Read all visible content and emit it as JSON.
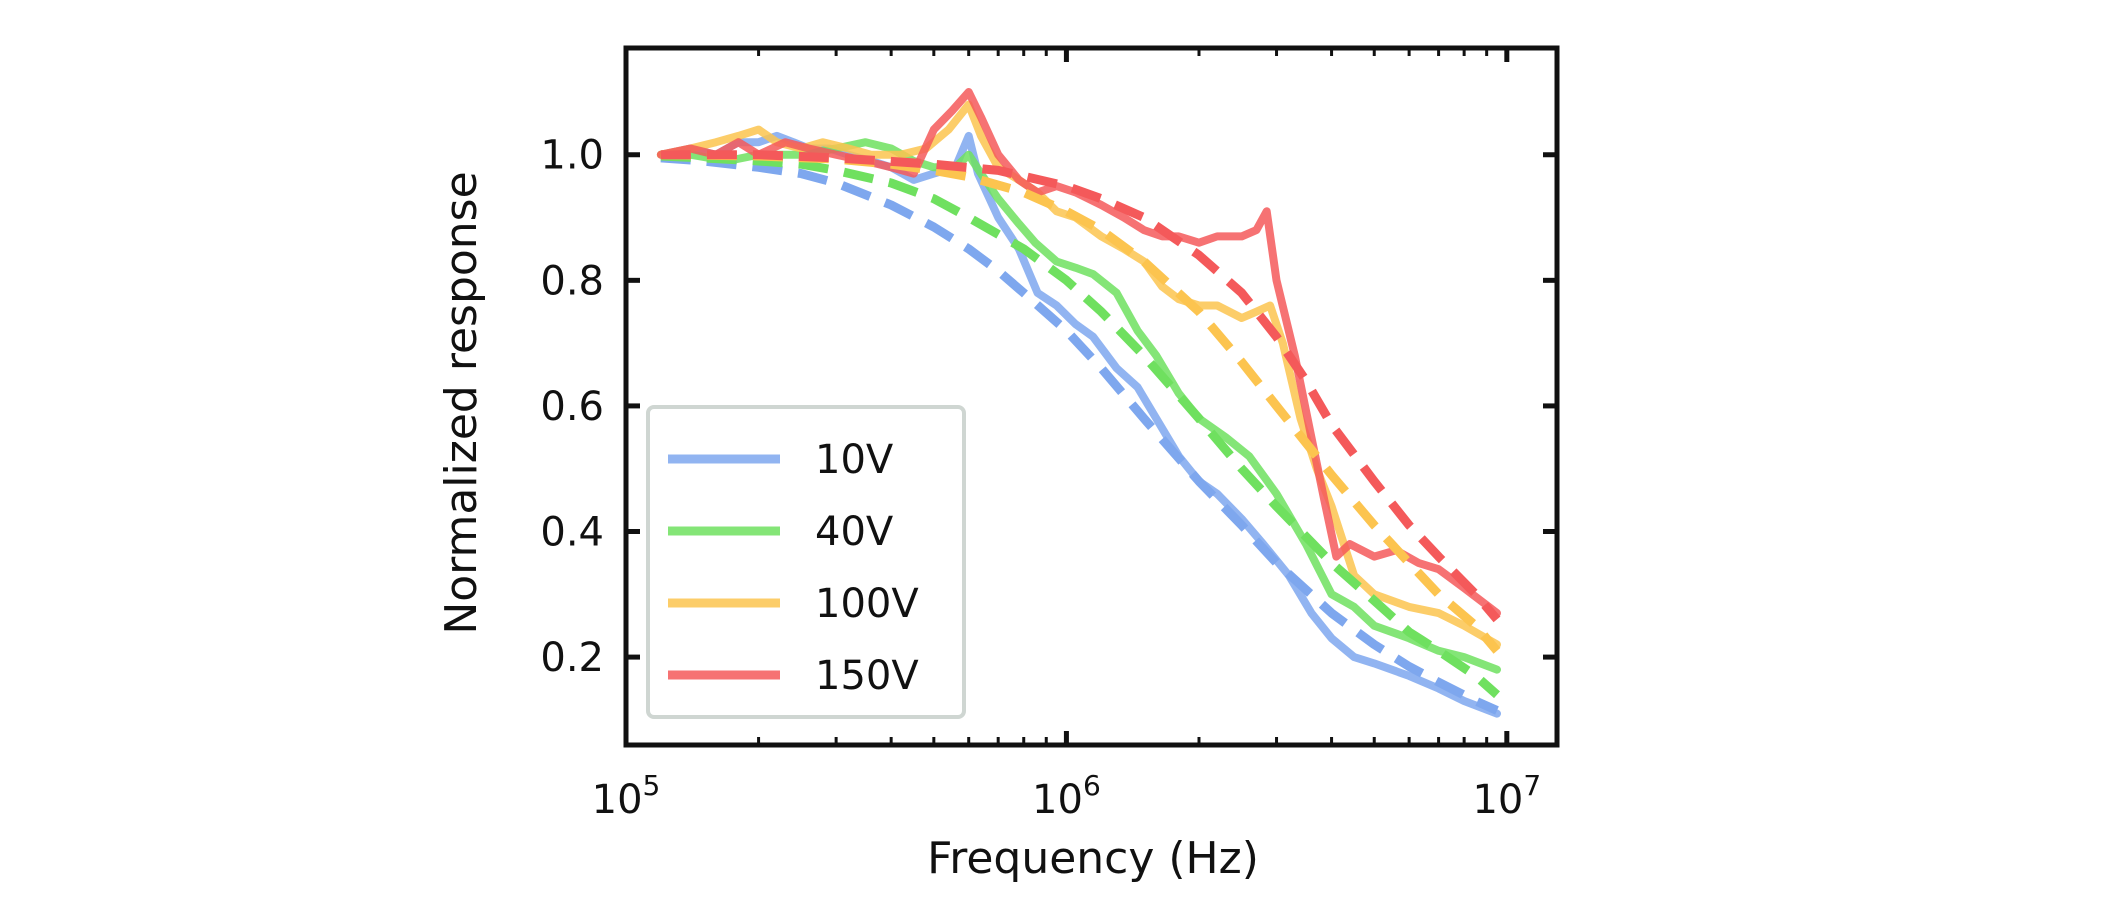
{
  "chart_data": {
    "type": "line",
    "title": "",
    "xlabel": "Frequency (Hz)",
    "ylabel": "Normalized response",
    "xscale": "log",
    "xlim": [
      100000,
      13000000
    ],
    "ylim": [
      0.06,
      1.17
    ],
    "grid": false,
    "legend_position": "bottom-left",
    "x_ticks": [
      {
        "value": 100000,
        "base": "10",
        "exp": "5"
      },
      {
        "value": 1000000,
        "base": "10",
        "exp": "6"
      },
      {
        "value": 10000000,
        "base": "10",
        "exp": "7"
      }
    ],
    "y_ticks": [
      {
        "value": 0.2,
        "label": "0.2"
      },
      {
        "value": 0.4,
        "label": "0.4"
      },
      {
        "value": 0.6,
        "label": "0.6"
      },
      {
        "value": 0.8,
        "label": "0.8"
      },
      {
        "value": 1.0,
        "label": "1.0"
      }
    ],
    "series": [
      {
        "name": "10V",
        "color": "#7ea7ee",
        "measured": [
          [
            120000,
            1.0
          ],
          [
            140000,
            1.01
          ],
          [
            160000,
            1.0
          ],
          [
            180000,
            1.02
          ],
          [
            200000,
            1.02
          ],
          [
            220000,
            1.03
          ],
          [
            240000,
            1.02
          ],
          [
            260000,
            1.01
          ],
          [
            290000,
            1.01
          ],
          [
            320000,
            1.0
          ],
          [
            360000,
            0.99
          ],
          [
            400000,
            0.98
          ],
          [
            450000,
            0.96
          ],
          [
            500000,
            0.97
          ],
          [
            560000,
            0.98
          ],
          [
            600000,
            1.03
          ],
          [
            630000,
            0.97
          ],
          [
            700000,
            0.9
          ],
          [
            780000,
            0.85
          ],
          [
            860000,
            0.78
          ],
          [
            950000,
            0.76
          ],
          [
            1050000,
            0.73
          ],
          [
            1150000,
            0.71
          ],
          [
            1300000,
            0.66
          ],
          [
            1450000,
            0.63
          ],
          [
            1600000,
            0.58
          ],
          [
            1800000,
            0.52
          ],
          [
            2000000,
            0.48
          ],
          [
            2200000,
            0.46
          ],
          [
            2500000,
            0.42
          ],
          [
            2800000,
            0.38
          ],
          [
            3200000,
            0.33
          ],
          [
            3600000,
            0.27
          ],
          [
            4000000,
            0.23
          ],
          [
            4500000,
            0.2
          ],
          [
            5000000,
            0.19
          ],
          [
            6000000,
            0.17
          ],
          [
            7000000,
            0.15
          ],
          [
            8000000,
            0.13
          ],
          [
            9500000,
            0.11
          ]
        ],
        "fit": [
          [
            120000,
            0.995
          ],
          [
            150000,
            0.99
          ],
          [
            200000,
            0.98
          ],
          [
            250000,
            0.97
          ],
          [
            300000,
            0.955
          ],
          [
            400000,
            0.92
          ],
          [
            500000,
            0.885
          ],
          [
            600000,
            0.85
          ],
          [
            700000,
            0.815
          ],
          [
            800000,
            0.78
          ],
          [
            1000000,
            0.72
          ],
          [
            1200000,
            0.66
          ],
          [
            1500000,
            0.58
          ],
          [
            2000000,
            0.48
          ],
          [
            2500000,
            0.41
          ],
          [
            3000000,
            0.35
          ],
          [
            4000000,
            0.27
          ],
          [
            5000000,
            0.22
          ],
          [
            6000000,
            0.185
          ],
          [
            7000000,
            0.16
          ],
          [
            8500000,
            0.13
          ],
          [
            9500000,
            0.115
          ]
        ]
      },
      {
        "name": "40V",
        "color": "#6fe05f",
        "measured": [
          [
            120000,
            1.0
          ],
          [
            140000,
            1.0
          ],
          [
            170000,
            0.99
          ],
          [
            200000,
            1.0
          ],
          [
            250000,
            1.0
          ],
          [
            300000,
            1.01
          ],
          [
            350000,
            1.02
          ],
          [
            400000,
            1.01
          ],
          [
            450000,
            0.99
          ],
          [
            500000,
            0.98
          ],
          [
            560000,
            0.98
          ],
          [
            600000,
            1.0
          ],
          [
            640000,
            0.97
          ],
          [
            700000,
            0.93
          ],
          [
            780000,
            0.89
          ],
          [
            850000,
            0.86
          ],
          [
            950000,
            0.83
          ],
          [
            1050000,
            0.82
          ],
          [
            1150000,
            0.81
          ],
          [
            1300000,
            0.78
          ],
          [
            1450000,
            0.72
          ],
          [
            1600000,
            0.68
          ],
          [
            1800000,
            0.62
          ],
          [
            2000000,
            0.58
          ],
          [
            2300000,
            0.55
          ],
          [
            2600000,
            0.52
          ],
          [
            3000000,
            0.46
          ],
          [
            3500000,
            0.38
          ],
          [
            4000000,
            0.3
          ],
          [
            4500000,
            0.28
          ],
          [
            5000000,
            0.25
          ],
          [
            6000000,
            0.23
          ],
          [
            7000000,
            0.21
          ],
          [
            8000000,
            0.2
          ],
          [
            9500000,
            0.18
          ]
        ],
        "fit": [
          [
            120000,
            0.998
          ],
          [
            150000,
            0.995
          ],
          [
            200000,
            0.99
          ],
          [
            250000,
            0.985
          ],
          [
            300000,
            0.975
          ],
          [
            400000,
            0.955
          ],
          [
            500000,
            0.93
          ],
          [
            600000,
            0.9
          ],
          [
            800000,
            0.85
          ],
          [
            1000000,
            0.8
          ],
          [
            1200000,
            0.75
          ],
          [
            1500000,
            0.68
          ],
          [
            2000000,
            0.58
          ],
          [
            2500000,
            0.5
          ],
          [
            3000000,
            0.44
          ],
          [
            4000000,
            0.35
          ],
          [
            5000000,
            0.29
          ],
          [
            6000000,
            0.24
          ],
          [
            7000000,
            0.21
          ],
          [
            8500000,
            0.17
          ],
          [
            9500000,
            0.14
          ]
        ]
      },
      {
        "name": "100V",
        "color": "#fcc44f",
        "measured": [
          [
            120000,
            1.0
          ],
          [
            140000,
            1.01
          ],
          [
            160000,
            1.02
          ],
          [
            180000,
            1.03
          ],
          [
            200000,
            1.04
          ],
          [
            220000,
            1.02
          ],
          [
            250000,
            1.01
          ],
          [
            280000,
            1.02
          ],
          [
            320000,
            1.01
          ],
          [
            360000,
            1.0
          ],
          [
            420000,
            1.0
          ],
          [
            480000,
            1.01
          ],
          [
            540000,
            1.04
          ],
          [
            600000,
            1.08
          ],
          [
            640000,
            1.03
          ],
          [
            700000,
            0.98
          ],
          [
            780000,
            0.96
          ],
          [
            860000,
            0.94
          ],
          [
            950000,
            0.91
          ],
          [
            1050000,
            0.9
          ],
          [
            1200000,
            0.87
          ],
          [
            1350000,
            0.85
          ],
          [
            1500000,
            0.83
          ],
          [
            1650000,
            0.79
          ],
          [
            1800000,
            0.77
          ],
          [
            2000000,
            0.76
          ],
          [
            2200000,
            0.76
          ],
          [
            2500000,
            0.74
          ],
          [
            2700000,
            0.75
          ],
          [
            2900000,
            0.76
          ],
          [
            3100000,
            0.7
          ],
          [
            3400000,
            0.58
          ],
          [
            3700000,
            0.5
          ],
          [
            4000000,
            0.44
          ],
          [
            4500000,
            0.33
          ],
          [
            5000000,
            0.3
          ],
          [
            6000000,
            0.28
          ],
          [
            7000000,
            0.27
          ],
          [
            8000000,
            0.25
          ],
          [
            9500000,
            0.22
          ]
        ],
        "fit": [
          [
            120000,
            1.0
          ],
          [
            200000,
            0.998
          ],
          [
            300000,
            0.993
          ],
          [
            400000,
            0.985
          ],
          [
            500000,
            0.975
          ],
          [
            600000,
            0.965
          ],
          [
            800000,
            0.94
          ],
          [
            1000000,
            0.91
          ],
          [
            1200000,
            0.88
          ],
          [
            1500000,
            0.83
          ],
          [
            2000000,
            0.75
          ],
          [
            2500000,
            0.67
          ],
          [
            3000000,
            0.6
          ],
          [
            4000000,
            0.49
          ],
          [
            5000000,
            0.41
          ],
          [
            6000000,
            0.35
          ],
          [
            7000000,
            0.3
          ],
          [
            8500000,
            0.25
          ],
          [
            9500000,
            0.21
          ]
        ]
      },
      {
        "name": "150V",
        "color": "#f4595a",
        "measured": [
          [
            120000,
            1.0
          ],
          [
            140000,
            1.01
          ],
          [
            160000,
            1.0
          ],
          [
            180000,
            1.02
          ],
          [
            200000,
            1.0
          ],
          [
            230000,
            1.02
          ],
          [
            260000,
            1.01
          ],
          [
            300000,
            1.0
          ],
          [
            350000,
            0.99
          ],
          [
            400000,
            0.98
          ],
          [
            450000,
            0.97
          ],
          [
            500000,
            1.04
          ],
          [
            550000,
            1.07
          ],
          [
            600000,
            1.1
          ],
          [
            640000,
            1.06
          ],
          [
            700000,
            1.0
          ],
          [
            780000,
            0.96
          ],
          [
            860000,
            0.94
          ],
          [
            950000,
            0.95
          ],
          [
            1050000,
            0.94
          ],
          [
            1200000,
            0.92
          ],
          [
            1350000,
            0.9
          ],
          [
            1500000,
            0.88
          ],
          [
            1650000,
            0.87
          ],
          [
            1800000,
            0.87
          ],
          [
            2000000,
            0.86
          ],
          [
            2200000,
            0.87
          ],
          [
            2500000,
            0.87
          ],
          [
            2700000,
            0.88
          ],
          [
            2850000,
            0.91
          ],
          [
            3000000,
            0.8
          ],
          [
            3300000,
            0.68
          ],
          [
            3600000,
            0.55
          ],
          [
            3850000,
            0.45
          ],
          [
            4100000,
            0.36
          ],
          [
            4400000,
            0.38
          ],
          [
            5000000,
            0.36
          ],
          [
            5600000,
            0.37
          ],
          [
            6300000,
            0.35
          ],
          [
            7000000,
            0.34
          ],
          [
            8000000,
            0.31
          ],
          [
            9500000,
            0.27
          ]
        ],
        "fit": [
          [
            120000,
            1.0
          ],
          [
            200000,
            1.0
          ],
          [
            300000,
            0.995
          ],
          [
            500000,
            0.985
          ],
          [
            700000,
            0.975
          ],
          [
            1000000,
            0.95
          ],
          [
            1200000,
            0.93
          ],
          [
            1500000,
            0.9
          ],
          [
            2000000,
            0.84
          ],
          [
            2500000,
            0.78
          ],
          [
            3000000,
            0.71
          ],
          [
            3500000,
            0.64
          ],
          [
            4000000,
            0.57
          ],
          [
            5000000,
            0.48
          ],
          [
            6000000,
            0.41
          ],
          [
            7000000,
            0.36
          ],
          [
            8500000,
            0.3
          ],
          [
            9500000,
            0.26
          ]
        ]
      }
    ]
  }
}
